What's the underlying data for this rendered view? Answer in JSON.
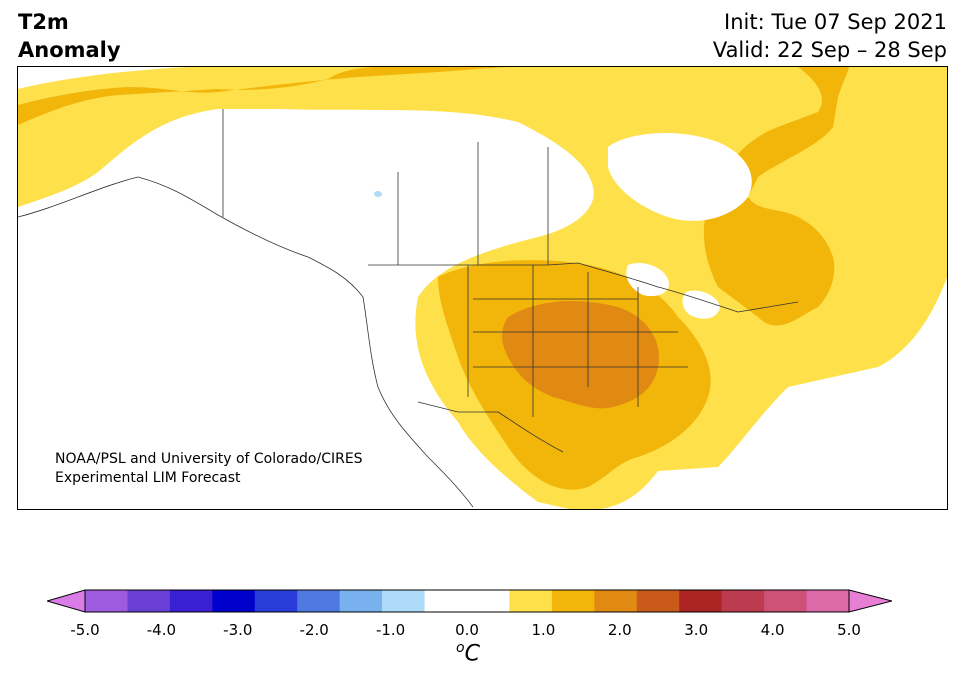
{
  "title": {
    "line1": "T2m",
    "line2": "Anomaly"
  },
  "period": {
    "init": "Init: Tue 07 Sep 2021",
    "valid": "Valid: 22 Sep – 28 Sep"
  },
  "credit": {
    "line1": "NOAA/PSL and University of Colorado/CIRES",
    "line2": "Experimental LIM Forecast"
  },
  "legend": {
    "unit_base": "C",
    "unit_sup": "o",
    "ticks": [
      "-5.0",
      "-4.0",
      "-3.0",
      "-2.0",
      "-1.0",
      "0.0",
      "1.0",
      "2.0",
      "3.0",
      "4.0",
      "5.0"
    ],
    "colors": [
      "#d97ce8",
      "#9f5be0",
      "#6a3fd6",
      "#3a20d0",
      "#0000cc",
      "#2a3dd9",
      "#4f78e0",
      "#79b0ee",
      "#aedbf8",
      "#ffffff",
      "#ffffff",
      "#fde04a",
      "#f2b50a",
      "#e08a13",
      "#c95a1a",
      "#ad2522",
      "#bd3b4f",
      "#cc5278",
      "#dc6aa8",
      "#e77fd6"
    ]
  },
  "map": {
    "anomaly_colors": {
      "light": "#fde04a",
      "medium": "#f2b50a",
      "strong": "#e08a13",
      "strongest": "#d2711a",
      "cold": "#aedbf8"
    }
  }
}
